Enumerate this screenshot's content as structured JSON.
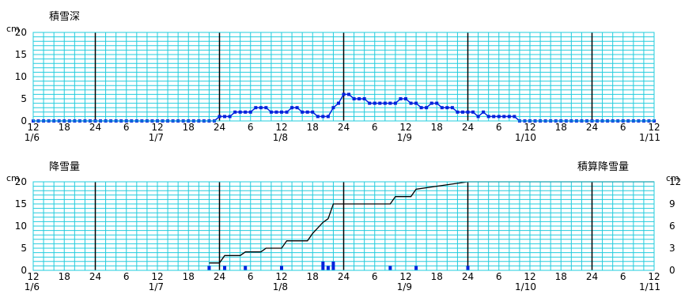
{
  "colors": {
    "grid": "#22ccdd",
    "panel_bg": "#ffffff",
    "day_line": "#000000",
    "series": "#0022dd",
    "cumulative": "#000000"
  },
  "page_title": "",
  "x_labels": {
    "hours": [
      "12",
      "18",
      "24",
      "6",
      "12",
      "18",
      "24",
      "6",
      "12",
      "18",
      "24",
      "6",
      "12",
      "18",
      "24",
      "6",
      "12",
      "18",
      "24",
      "6",
      "12"
    ],
    "dates": [
      "1/6",
      "1/7",
      "1/8",
      "1/9",
      "1/10",
      "1/11"
    ]
  },
  "chart_data": [
    {
      "type": "line",
      "title": "積雪深",
      "ylabel": "cm",
      "ylim": [
        0,
        20
      ],
      "y_ticks": [
        "0",
        "5",
        "10",
        "15",
        "20"
      ],
      "x_unit": "hours since 1/6 12:00",
      "xlim": [
        0,
        120
      ],
      "grid": true,
      "series": [
        {
          "x": [
            0,
            1,
            2,
            3,
            4,
            5,
            6,
            7,
            8,
            9,
            10,
            11,
            12,
            13,
            14,
            15,
            16,
            17,
            18,
            19,
            20,
            21,
            22,
            23,
            24,
            25,
            26,
            27,
            28,
            29,
            30,
            31,
            32,
            33,
            34,
            35,
            36,
            37,
            38,
            39,
            40,
            41,
            42,
            43,
            44,
            45,
            46,
            47,
            48,
            49,
            50,
            51,
            52,
            53,
            54,
            55,
            56,
            57,
            58,
            59,
            60,
            61,
            62,
            63,
            64,
            65,
            66,
            67,
            68,
            69,
            70,
            71,
            72,
            73,
            74,
            75,
            76,
            77,
            78,
            79,
            80,
            81,
            82,
            83,
            84,
            85,
            86,
            87,
            88,
            89,
            90,
            91,
            92,
            93,
            94,
            95,
            96,
            97,
            98,
            99,
            100,
            101,
            102,
            103,
            104,
            105,
            106,
            107,
            108,
            109,
            110,
            111,
            112,
            113,
            114,
            115,
            116,
            117,
            118,
            119,
            120
          ],
          "values": [
            0,
            0,
            0,
            0,
            0,
            0,
            0,
            0,
            0,
            0,
            0,
            0,
            0,
            0,
            0,
            0,
            0,
            0,
            0,
            0,
            0,
            0,
            0,
            0,
            0,
            0,
            0,
            0,
            0,
            0,
            0,
            0,
            0,
            0,
            0,
            0,
            1,
            1,
            1,
            2,
            2,
            2,
            2,
            3,
            3,
            3,
            2,
            2,
            2,
            2,
            3,
            3,
            2,
            2,
            2,
            1,
            1,
            1,
            3,
            4,
            6,
            6,
            5,
            5,
            5,
            4,
            4,
            4,
            4,
            4,
            4,
            5,
            5,
            4,
            4,
            3,
            3,
            4,
            4,
            3,
            3,
            3,
            2,
            2,
            2,
            2,
            1,
            2,
            1,
            1,
            1,
            1,
            1,
            1,
            0,
            0,
            0,
            0,
            0,
            0,
            0,
            0,
            0,
            0,
            0,
            0,
            0,
            0,
            0,
            0,
            0,
            0,
            0,
            0,
            0,
            0,
            0,
            0,
            0,
            0,
            0
          ]
        }
      ]
    },
    {
      "type": "bar",
      "title": "降雪量",
      "ylabel": "cm",
      "ylim": [
        0,
        20
      ],
      "y_ticks": [
        "0",
        "5",
        "10",
        "15",
        "20"
      ],
      "x_unit": "hours since 1/6 12:00",
      "xlim": [
        0,
        120
      ],
      "grid": true,
      "series": [
        {
          "x": [
            34,
            37,
            41,
            48,
            56,
            57,
            58,
            69,
            74,
            84
          ],
          "values": [
            1,
            1,
            1,
            1,
            2,
            1,
            2,
            1,
            1,
            1
          ]
        }
      ],
      "secondary_axis": {
        "title": "積算降雪量",
        "ylabel": "cm",
        "ylim": [
          0,
          12
        ],
        "y_ticks": [
          "0",
          "3",
          "6",
          "9",
          "12"
        ],
        "line": {
          "x": [
            34,
            36,
            37,
            40,
            41,
            44,
            45,
            48,
            49,
            53,
            54,
            56,
            57,
            58,
            69,
            70,
            73,
            74,
            84,
            120
          ],
          "values": [
            1,
            1,
            2,
            2,
            2.5,
            2.5,
            3,
            3,
            4,
            4,
            5,
            6.5,
            7,
            9,
            9,
            10,
            10,
            11,
            12,
            12
          ]
        }
      }
    }
  ]
}
